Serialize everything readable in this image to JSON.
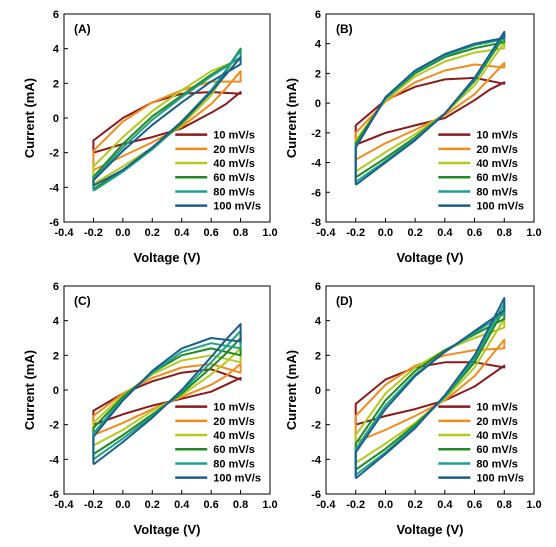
{
  "chart_data": [
    {
      "type": "line",
      "panel_label": "(A)",
      "xlabel": "Voltage (V)",
      "ylabel": "Current (mA)",
      "xlim": [
        -0.4,
        1.0
      ],
      "ylim": [
        -6,
        6
      ],
      "xticks": [
        "-0.4",
        "-0.2",
        "0.0",
        "0.2",
        "0.4",
        "0.6",
        "0.8",
        "1.0"
      ],
      "yticks": [
        "-6",
        "-4",
        "-2",
        "0",
        "2",
        "4",
        "6"
      ],
      "grid": false,
      "legend": "bottom-right",
      "series": [
        {
          "name": "10 mV/s",
          "color": "#8b1a1a",
          "x": [
            -0.2,
            0.0,
            0.2,
            0.4,
            0.6,
            0.7,
            0.8,
            0.8,
            0.6,
            0.4,
            0.2,
            0.0,
            -0.2,
            -0.2
          ],
          "y": [
            -2.0,
            -1.5,
            -1.1,
            -0.6,
            0.3,
            0.8,
            1.5,
            1.4,
            1.5,
            1.4,
            0.9,
            0.0,
            -1.3,
            -2.0
          ]
        },
        {
          "name": "20 mV/s",
          "color": "#f08c1e",
          "x": [
            -0.2,
            0.0,
            0.2,
            0.4,
            0.6,
            0.7,
            0.8,
            0.8,
            0.6,
            0.4,
            0.2,
            0.0,
            -0.2,
            -0.2
          ],
          "y": [
            -3.0,
            -2.2,
            -1.4,
            -0.5,
            0.8,
            1.7,
            2.7,
            2.1,
            2.1,
            1.6,
            0.9,
            -0.2,
            -1.9,
            -3.0
          ]
        },
        {
          "name": "40 mV/s",
          "color": "#b4c820",
          "x": [
            -0.2,
            0.0,
            0.2,
            0.4,
            0.6,
            0.8,
            0.8,
            0.6,
            0.4,
            0.2,
            0.0,
            -0.2,
            -0.2
          ],
          "y": [
            -3.8,
            -2.8,
            -1.7,
            -0.4,
            1.3,
            4.0,
            3.4,
            2.7,
            1.6,
            0.4,
            -1.1,
            -2.8,
            -3.8
          ]
        },
        {
          "name": "60 mV/s",
          "color": "#1f8a1f",
          "x": [
            -0.2,
            0.0,
            0.2,
            0.4,
            0.6,
            0.8,
            0.8,
            0.6,
            0.4,
            0.2,
            0.0,
            -0.2,
            -0.2
          ],
          "y": [
            -4.1,
            -3.0,
            -1.8,
            -0.3,
            1.5,
            4.0,
            3.5,
            2.5,
            1.3,
            0.1,
            -1.5,
            -3.4,
            -4.1
          ]
        },
        {
          "name": "80 mV/s",
          "color": "#1aa38a",
          "x": [
            -0.2,
            0.0,
            0.2,
            0.4,
            0.6,
            0.8,
            0.8,
            0.6,
            0.4,
            0.2,
            0.0,
            -0.2,
            -0.2
          ],
          "y": [
            -4.2,
            -3.1,
            -1.8,
            -0.2,
            1.6,
            3.9,
            3.5,
            2.4,
            1.2,
            -0.1,
            -1.7,
            -3.5,
            -4.2
          ]
        },
        {
          "name": "100 mV/s",
          "color": "#1b5e8c",
          "x": [
            -0.2,
            0.0,
            0.2,
            0.4,
            0.6,
            0.8,
            0.8,
            0.6,
            0.4,
            0.2,
            0.0,
            -0.2,
            -0.2
          ],
          "y": [
            -3.9,
            -3.0,
            -1.7,
            -0.2,
            1.5,
            3.5,
            3.1,
            2.1,
            0.9,
            -0.4,
            -1.9,
            -3.6,
            -3.9
          ]
        }
      ]
    },
    {
      "type": "line",
      "panel_label": "(B)",
      "xlabel": "Voltage (V)",
      "ylabel": "Current (mA)",
      "xlim": [
        -0.4,
        1.0
      ],
      "ylim": [
        -8,
        6
      ],
      "xticks": [
        "-0.4",
        "-0.2",
        "0.0",
        "0.2",
        "0.4",
        "0.6",
        "0.8",
        "1.0"
      ],
      "yticks": [
        "-8",
        "-6",
        "-4",
        "-2",
        "0",
        "2",
        "4",
        "6"
      ],
      "grid": false,
      "legend": "bottom-right",
      "series": [
        {
          "name": "10 mV/s",
          "color": "#8b1a1a",
          "x": [
            -0.2,
            0.0,
            0.2,
            0.4,
            0.6,
            0.7,
            0.8,
            0.8,
            0.6,
            0.4,
            0.2,
            0.0,
            -0.2,
            -0.2
          ],
          "y": [
            -2.8,
            -2.0,
            -1.5,
            -1.0,
            0.2,
            0.9,
            1.4,
            1.3,
            1.7,
            1.6,
            1.1,
            0.2,
            -1.5,
            -2.8
          ]
        },
        {
          "name": "20 mV/s",
          "color": "#f08c1e",
          "x": [
            -0.2,
            0.0,
            0.2,
            0.4,
            0.6,
            0.8,
            0.8,
            0.6,
            0.4,
            0.2,
            0.0,
            -0.2,
            -0.2
          ],
          "y": [
            -3.8,
            -2.7,
            -1.8,
            -0.8,
            0.6,
            2.7,
            2.4,
            2.6,
            2.2,
            1.4,
            0.1,
            -2.0,
            -3.8
          ]
        },
        {
          "name": "40 mV/s",
          "color": "#b4c820",
          "x": [
            -0.2,
            0.0,
            0.2,
            0.4,
            0.6,
            0.8,
            0.8,
            0.6,
            0.4,
            0.2,
            0.0,
            -0.2,
            -0.2
          ],
          "y": [
            -4.6,
            -3.3,
            -2.1,
            -0.7,
            1.2,
            4.1,
            3.7,
            3.4,
            2.8,
            1.8,
            0.2,
            -2.5,
            -4.6
          ]
        },
        {
          "name": "60 mV/s",
          "color": "#1f8a1f",
          "x": [
            -0.2,
            0.0,
            0.2,
            0.4,
            0.6,
            0.8,
            0.8,
            0.6,
            0.4,
            0.2,
            0.0,
            -0.2,
            -0.2
          ],
          "y": [
            -5.0,
            -3.7,
            -2.3,
            -0.7,
            1.5,
            4.5,
            4.1,
            3.7,
            3.1,
            2.0,
            0.3,
            -2.7,
            -5.0
          ]
        },
        {
          "name": "80 mV/s",
          "color": "#1aa38a",
          "x": [
            -0.2,
            0.0,
            0.2,
            0.4,
            0.6,
            0.8,
            0.8,
            0.6,
            0.4,
            0.2,
            0.0,
            -0.2,
            -0.2
          ],
          "y": [
            -5.3,
            -3.9,
            -2.4,
            -0.7,
            1.6,
            4.7,
            4.3,
            3.9,
            3.2,
            2.1,
            0.3,
            -2.9,
            -5.3
          ]
        },
        {
          "name": "100 mV/s",
          "color": "#1b5e8c",
          "x": [
            -0.2,
            0.0,
            0.2,
            0.4,
            0.6,
            0.8,
            0.8,
            0.6,
            0.4,
            0.2,
            0.0,
            -0.2,
            -0.2
          ],
          "y": [
            -5.5,
            -4.0,
            -2.5,
            -0.7,
            1.7,
            4.8,
            4.4,
            4.0,
            3.3,
            2.2,
            0.4,
            -3.0,
            -5.5
          ]
        }
      ]
    },
    {
      "type": "line",
      "panel_label": "(C)",
      "xlabel": "Voltage (V)",
      "ylabel": "Current (mA)",
      "xlim": [
        -0.4,
        1.0
      ],
      "ylim": [
        -6,
        6
      ],
      "xticks": [
        "-0.4",
        "-0.2",
        "0.0",
        "0.2",
        "0.4",
        "0.6",
        "0.8",
        "1.0"
      ],
      "yticks": [
        "-6",
        "-4",
        "-2",
        "0",
        "2",
        "4",
        "6"
      ],
      "grid": false,
      "legend": "bottom-right",
      "series": [
        {
          "name": "10 mV/s",
          "color": "#8b1a1a",
          "x": [
            -0.2,
            0.0,
            0.2,
            0.4,
            0.6,
            0.7,
            0.8,
            0.8,
            0.6,
            0.4,
            0.2,
            0.0,
            -0.2,
            -0.2
          ],
          "y": [
            -2.0,
            -1.4,
            -0.9,
            -0.5,
            -0.1,
            0.3,
            0.7,
            0.6,
            1.2,
            1.0,
            0.5,
            -0.2,
            -1.2,
            -2.0
          ]
        },
        {
          "name": "20 mV/s",
          "color": "#f08c1e",
          "x": [
            -0.2,
            0.0,
            0.2,
            0.4,
            0.6,
            0.7,
            0.8,
            0.8,
            0.6,
            0.4,
            0.2,
            0.0,
            -0.2,
            -0.2
          ],
          "y": [
            -2.6,
            -1.9,
            -1.1,
            -0.4,
            0.3,
            0.8,
            1.5,
            1.0,
            1.5,
            1.3,
            0.7,
            -0.2,
            -1.5,
            -2.6
          ]
        },
        {
          "name": "40 mV/s",
          "color": "#b4c820",
          "x": [
            -0.2,
            0.0,
            0.2,
            0.4,
            0.6,
            0.7,
            0.8,
            0.8,
            0.6,
            0.4,
            0.2,
            0.0,
            -0.2,
            -0.2
          ],
          "y": [
            -3.2,
            -2.3,
            -1.2,
            -0.3,
            0.9,
            1.6,
            2.4,
            1.6,
            2.0,
            1.7,
            0.9,
            -0.3,
            -1.9,
            -3.2
          ]
        },
        {
          "name": "60 mV/s",
          "color": "#1f8a1f",
          "x": [
            -0.2,
            0.0,
            0.2,
            0.4,
            0.6,
            0.7,
            0.8,
            0.8,
            0.6,
            0.4,
            0.2,
            0.0,
            -0.2,
            -0.2
          ],
          "y": [
            -3.7,
            -2.6,
            -1.4,
            -0.2,
            1.3,
            2.1,
            3.0,
            2.0,
            2.4,
            2.0,
            1.0,
            -0.4,
            -2.2,
            -3.7
          ]
        },
        {
          "name": "80 mV/s",
          "color": "#1aa38a",
          "x": [
            -0.2,
            0.0,
            0.2,
            0.4,
            0.6,
            0.7,
            0.8,
            0.8,
            0.6,
            0.4,
            0.2,
            0.0,
            -0.2,
            -0.2
          ],
          "y": [
            -4.0,
            -2.8,
            -1.5,
            -0.1,
            1.6,
            2.5,
            3.4,
            2.4,
            2.7,
            2.2,
            1.0,
            -0.5,
            -2.5,
            -4.0
          ]
        },
        {
          "name": "100 mV/s",
          "color": "#1b5e8c",
          "x": [
            -0.2,
            0.0,
            0.2,
            0.4,
            0.6,
            0.7,
            0.8,
            0.8,
            0.6,
            0.4,
            0.2,
            0.0,
            -0.2,
            -0.2
          ],
          "y": [
            -4.3,
            -3.0,
            -1.6,
            0.0,
            1.9,
            2.9,
            3.8,
            2.8,
            3.0,
            2.4,
            1.1,
            -0.6,
            -2.7,
            -4.3
          ]
        }
      ]
    },
    {
      "type": "line",
      "panel_label": "(D)",
      "xlabel": "Voltage (V)",
      "ylabel": "Current (mA)",
      "xlim": [
        -0.4,
        1.0
      ],
      "ylim": [
        -6,
        6
      ],
      "xticks": [
        "-0.4",
        "-0.2",
        "0.0",
        "0.2",
        "0.4",
        "0.6",
        "0.8",
        "1.0"
      ],
      "yticks": [
        "-6",
        "-4",
        "-2",
        "0",
        "2",
        "4",
        "6"
      ],
      "grid": false,
      "legend": "bottom-right",
      "series": [
        {
          "name": "10 mV/s",
          "color": "#8b1a1a",
          "x": [
            -0.2,
            0.0,
            0.2,
            0.4,
            0.6,
            0.7,
            0.8,
            0.8,
            0.6,
            0.4,
            0.2,
            0.0,
            -0.2,
            -0.2
          ],
          "y": [
            -2.0,
            -1.5,
            -1.1,
            -0.6,
            0.2,
            0.8,
            1.4,
            1.3,
            1.6,
            1.6,
            1.3,
            0.6,
            -0.8,
            -2.0
          ]
        },
        {
          "name": "20 mV/s",
          "color": "#f08c1e",
          "x": [
            -0.2,
            0.0,
            0.2,
            0.4,
            0.6,
            0.8,
            0.8,
            0.6,
            0.4,
            0.2,
            0.0,
            -0.2,
            -0.2
          ],
          "y": [
            -3.0,
            -2.3,
            -1.5,
            -0.6,
            0.8,
            2.9,
            2.4,
            2.3,
            2.0,
            1.4,
            0.3,
            -1.5,
            -3.0
          ]
        },
        {
          "name": "40 mV/s",
          "color": "#b4c820",
          "x": [
            -0.2,
            0.0,
            0.2,
            0.4,
            0.6,
            0.8,
            0.8,
            0.6,
            0.4,
            0.2,
            0.0,
            -0.2,
            -0.2
          ],
          "y": [
            -4.2,
            -3.1,
            -1.9,
            -0.5,
            1.3,
            4.1,
            3.6,
            3.0,
            2.3,
            1.3,
            -0.2,
            -2.6,
            -4.2
          ]
        },
        {
          "name": "60 mV/s",
          "color": "#1f8a1f",
          "x": [
            -0.2,
            0.0,
            0.2,
            0.4,
            0.6,
            0.8,
            0.8,
            0.6,
            0.4,
            0.2,
            0.0,
            -0.2,
            -0.2
          ],
          "y": [
            -4.6,
            -3.4,
            -2.0,
            -0.4,
            1.6,
            4.7,
            4.1,
            3.2,
            2.3,
            1.1,
            -0.6,
            -3.1,
            -4.6
          ]
        },
        {
          "name": "80 mV/s",
          "color": "#1aa38a",
          "x": [
            -0.2,
            0.0,
            0.2,
            0.4,
            0.6,
            0.8,
            0.8,
            0.6,
            0.4,
            0.2,
            0.0,
            -0.2,
            -0.2
          ],
          "y": [
            -4.9,
            -3.6,
            -2.1,
            -0.4,
            1.8,
            5.0,
            4.4,
            3.3,
            2.2,
            0.9,
            -0.9,
            -3.4,
            -4.9
          ]
        },
        {
          "name": "100 mV/s",
          "color": "#1b5e8c",
          "x": [
            -0.2,
            0.0,
            0.2,
            0.4,
            0.6,
            0.8,
            0.8,
            0.6,
            0.4,
            0.2,
            0.0,
            -0.2,
            -0.2
          ],
          "y": [
            -5.1,
            -3.7,
            -2.2,
            -0.3,
            2.0,
            5.3,
            4.6,
            3.4,
            2.2,
            0.8,
            -1.1,
            -3.6,
            -5.1
          ]
        }
      ]
    }
  ]
}
